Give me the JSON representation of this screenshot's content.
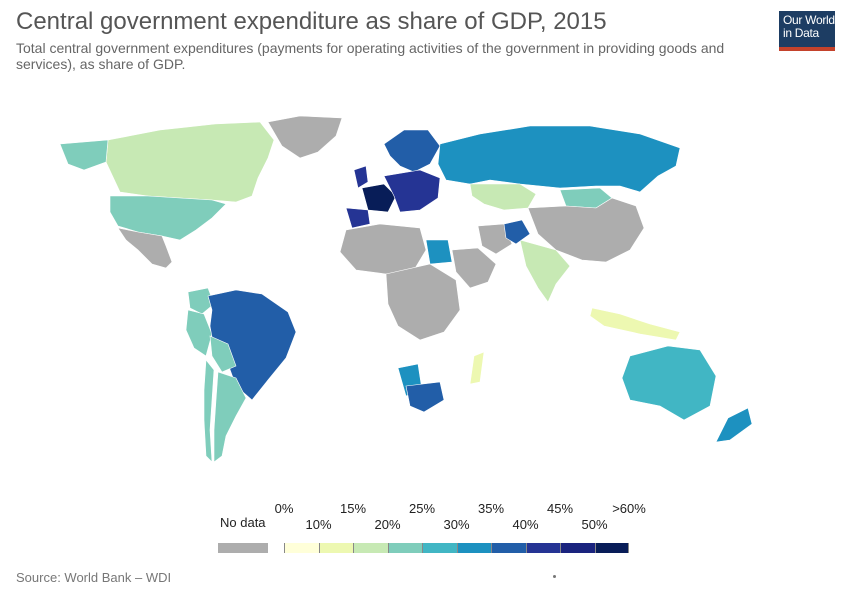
{
  "header": {
    "title": "Central government expenditure as share of GDP, 2015",
    "subtitle": "Total central government expenditures (payments for operating activities of the government in providing goods and services), as share of GDP."
  },
  "logo": {
    "line1": "Our World",
    "line2": "in Data",
    "bg": "#1d3d63",
    "accent": "#c4422b"
  },
  "legend": {
    "no_data_label": "No data",
    "no_data_color": "#adadad",
    "bins": [
      {
        "label_bottom": "0%",
        "color": "#ffffd9"
      },
      {
        "label_bottom": "10%",
        "color": "#edf8b1"
      },
      {
        "label_bottom": "15%",
        "color": "#c7e9b4"
      },
      {
        "label_bottom": "20%",
        "color": "#7fcdbb"
      },
      {
        "label_bottom": "25%",
        "color": "#41b6c4"
      },
      {
        "label_bottom": "30%",
        "color": "#1d91c0"
      },
      {
        "label_bottom": "35%",
        "color": "#225ea8"
      },
      {
        "label_bottom": "40%",
        "color": "#253494"
      },
      {
        "label_bottom": "45%",
        "color": "#1a237e"
      },
      {
        "label_bottom": "50%",
        "color": "#081d58"
      }
    ],
    "tick_labels_top": [
      "0%",
      "15%",
      "25%",
      "35%",
      "45%",
      ">60%"
    ],
    "tick_labels_bottom": [
      "10%",
      "20%",
      "30%",
      "40%",
      "50%"
    ]
  },
  "map_regions": [
    {
      "name": "Canada",
      "color": "#c7e9b4"
    },
    {
      "name": "United States",
      "color": "#7fcdbb"
    },
    {
      "name": "Greenland",
      "color": "#adadad"
    },
    {
      "name": "Mexico",
      "color": "#adadad"
    },
    {
      "name": "Brazil",
      "color": "#225ea8"
    },
    {
      "name": "Peru",
      "color": "#7fcdbb"
    },
    {
      "name": "Argentina",
      "color": "#7fcdbb"
    },
    {
      "name": "Chile",
      "color": "#7fcdbb"
    },
    {
      "name": "Bolivia",
      "color": "#7fcdbb"
    },
    {
      "name": "Russia",
      "color": "#1d91c0"
    },
    {
      "name": "China",
      "color": "#adadad"
    },
    {
      "name": "India",
      "color": "#c7e9b4"
    },
    {
      "name": "Kazakhstan",
      "color": "#c7e9b4"
    },
    {
      "name": "Mongolia",
      "color": "#7fcdbb"
    },
    {
      "name": "Afghanistan",
      "color": "#225ea8"
    },
    {
      "name": "Iran",
      "color": "#adadad"
    },
    {
      "name": "Saudi Arabia",
      "color": "#adadad"
    },
    {
      "name": "Egypt",
      "color": "#1d91c0"
    },
    {
      "name": "South Africa",
      "color": "#225ea8"
    },
    {
      "name": "Namibia",
      "color": "#1d91c0"
    },
    {
      "name": "Madagascar",
      "color": "#edf8b1"
    },
    {
      "name": "Australia",
      "color": "#41b6c4"
    },
    {
      "name": "New Zealand",
      "color": "#1d91c0"
    },
    {
      "name": "Indonesia",
      "color": "#edf8b1"
    },
    {
      "name": "Scandinavia",
      "color": "#225ea8"
    },
    {
      "name": "France",
      "color": "#081d58"
    },
    {
      "name": "Western Europe",
      "color": "#253494"
    }
  ],
  "source": "Source: World Bank – WDI"
}
